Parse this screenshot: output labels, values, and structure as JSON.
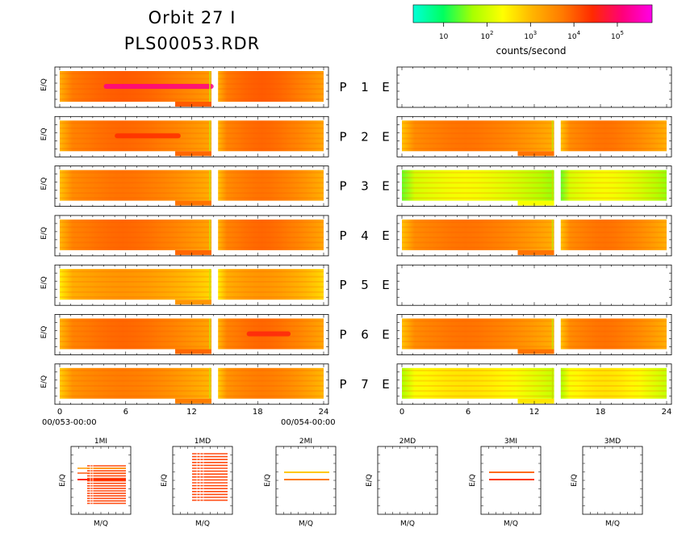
{
  "title": {
    "line1": "Orbit 27 I",
    "line2": "PLS00053.RDR"
  },
  "colorbar": {
    "label": "counts/second",
    "ticks": [
      {
        "base": "10",
        "exp": ""
      },
      {
        "base": "10",
        "exp": "2"
      },
      {
        "base": "10",
        "exp": "3"
      },
      {
        "base": "10",
        "exp": "4"
      },
      {
        "base": "10",
        "exp": "5"
      }
    ],
    "colors": [
      "#00ffd8",
      "#00ff60",
      "#a8ff00",
      "#ffff00",
      "#ffb400",
      "#ff7a00",
      "#ff2a00",
      "#ff0078",
      "#ff00e8"
    ]
  },
  "row_labels": {
    "p": "P",
    "e": "E",
    "numbers": [
      "1",
      "2",
      "3",
      "4",
      "5",
      "6",
      "7"
    ]
  },
  "ylabel": "E/Q",
  "x_ticks": [
    "0",
    "6",
    "12",
    "18",
    "24"
  ],
  "date_labels": {
    "start": "00/053-00:00",
    "end": "00/054-00:00"
  },
  "chart_data": {
    "type": "heatmap",
    "x_range_hours": [
      0,
      24
    ],
    "colorscale": "log counts/second, 10^0.3 to 10^5.8",
    "p_panels": [
      {
        "id": "P1",
        "dominant_log_counts": 4.0,
        "peak_log_counts": 5.2,
        "peak_hours": [
          4,
          14
        ]
      },
      {
        "id": "P2",
        "dominant_log_counts": 3.9,
        "peak_log_counts": 4.4,
        "peak_hours": [
          5,
          11
        ]
      },
      {
        "id": "P3",
        "dominant_log_counts": 3.8
      },
      {
        "id": "P4",
        "dominant_log_counts": 3.9
      },
      {
        "id": "P5",
        "dominant_log_counts": 3.4
      },
      {
        "id": "P6",
        "dominant_log_counts": 3.9,
        "peak_log_counts": 4.5,
        "peak_hours": [
          17,
          21
        ]
      },
      {
        "id": "P7",
        "dominant_log_counts": 3.7
      }
    ],
    "e_panels": [
      {
        "id": "E1",
        "data": false
      },
      {
        "id": "E2",
        "data": true,
        "dominant_log_counts": 3.8
      },
      {
        "id": "E3",
        "data": true,
        "dominant_log_counts": 2.3
      },
      {
        "id": "E4",
        "data": true,
        "dominant_log_counts": 3.8
      },
      {
        "id": "E5",
        "data": false
      },
      {
        "id": "E6",
        "data": true,
        "dominant_log_counts": 3.8
      },
      {
        "id": "E7",
        "data": true,
        "dominant_log_counts": 2.6
      }
    ],
    "data_gap_hours": [
      13.8,
      14.4
    ],
    "mass_panels": [
      {
        "title": "1MI",
        "xlabel": "M/Q",
        "ylabel": "E/Q",
        "data": true
      },
      {
        "title": "1MD",
        "xlabel": "M/Q",
        "ylabel": "E/Q",
        "data": true
      },
      {
        "title": "2MI",
        "xlabel": "M/Q",
        "ylabel": "E/Q",
        "data": true
      },
      {
        "title": "2MD",
        "xlabel": "M/Q",
        "ylabel": "E/Q",
        "data": false
      },
      {
        "title": "3MI",
        "xlabel": "M/Q",
        "ylabel": "E/Q",
        "data": true
      },
      {
        "title": "3MD",
        "xlabel": "M/Q",
        "ylabel": "E/Q",
        "data": false
      }
    ]
  }
}
